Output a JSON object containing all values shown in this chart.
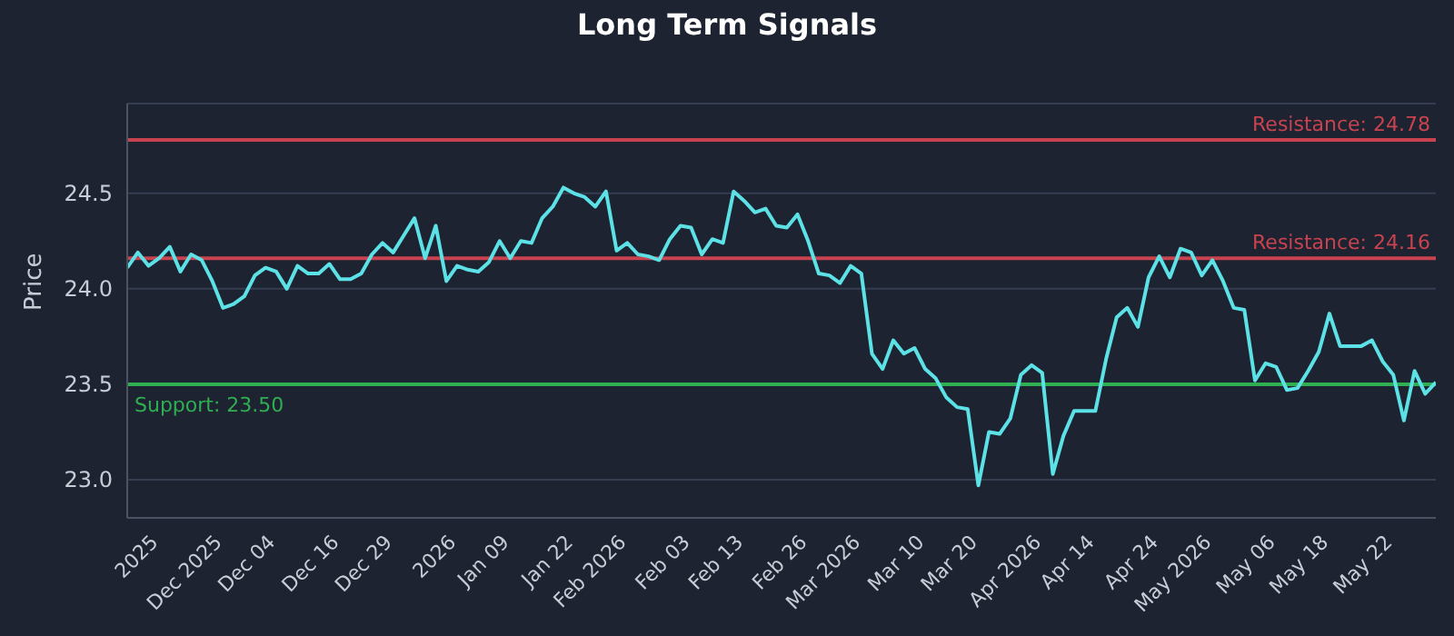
{
  "chart_data": {
    "type": "line",
    "title": "Long Term Signals",
    "ylabel": "Price",
    "categories": [
      null,
      null,
      null,
      "2025",
      null,
      null,
      null,
      null,
      null,
      "Dec 2025",
      null,
      null,
      null,
      null,
      "Dec 04",
      null,
      null,
      null,
      null,
      null,
      "Dec 16",
      null,
      null,
      null,
      null,
      "Dec 29",
      null,
      null,
      null,
      null,
      null,
      "2026",
      null,
      null,
      null,
      null,
      "Jan 09",
      null,
      null,
      null,
      null,
      null,
      "Jan 22",
      null,
      null,
      null,
      null,
      "Feb 2026",
      null,
      null,
      null,
      null,
      null,
      "Feb 03",
      null,
      null,
      null,
      null,
      "Feb 13",
      null,
      null,
      null,
      null,
      null,
      "Feb 26",
      null,
      null,
      null,
      null,
      "Mar 2026",
      null,
      null,
      null,
      null,
      null,
      "Mar 10",
      null,
      null,
      null,
      null,
      "Mar 20",
      null,
      null,
      null,
      null,
      null,
      "Apr 2026",
      null,
      null,
      null,
      null,
      "Apr 14",
      null,
      null,
      null,
      null,
      null,
      "Apr 24",
      null,
      null,
      null,
      null,
      "May 2026",
      null,
      null,
      null,
      null,
      null,
      "May 06",
      null,
      null,
      null,
      null,
      "May 18",
      null,
      null,
      null,
      null,
      null,
      "May 22",
      null,
      null,
      null,
      null
    ],
    "series": [
      {
        "color": "#5ce1e6",
        "values": [
          24.11,
          24.19,
          24.12,
          24.16,
          24.22,
          24.09,
          24.18,
          24.15,
          24.04,
          23.9,
          23.92,
          23.96,
          24.07,
          24.11,
          24.09,
          24.0,
          24.12,
          24.08,
          24.08,
          24.13,
          24.05,
          24.05,
          24.08,
          24.18,
          24.24,
          24.19,
          24.28,
          24.37,
          24.16,
          24.33,
          24.04,
          24.12,
          24.1,
          24.09,
          24.14,
          24.25,
          24.16,
          24.25,
          24.24,
          24.37,
          24.43,
          24.53,
          24.5,
          24.48,
          24.43,
          24.51,
          24.2,
          24.24,
          24.18,
          24.17,
          24.15,
          24.26,
          24.33,
          24.32,
          24.18,
          24.26,
          24.24,
          24.51,
          24.46,
          24.4,
          24.42,
          24.33,
          24.32,
          24.39,
          24.25,
          24.08,
          24.07,
          24.03,
          24.12,
          24.08,
          23.66,
          23.58,
          23.73,
          23.66,
          23.69,
          23.58,
          23.53,
          23.43,
          23.38,
          23.37,
          22.97,
          23.25,
          23.24,
          23.32,
          23.55,
          23.6,
          23.56,
          23.03,
          23.23,
          23.36,
          23.36,
          23.36,
          23.63,
          23.85,
          23.9,
          23.8,
          24.06,
          24.17,
          24.06,
          24.21,
          24.19,
          24.07,
          24.15,
          24.04,
          23.9,
          23.89,
          23.52,
          23.61,
          23.59,
          23.47,
          23.48,
          23.57,
          23.67,
          23.87,
          23.7,
          23.7,
          23.7,
          23.73,
          23.62,
          23.55,
          23.31,
          23.57,
          23.45,
          23.51
        ]
      }
    ],
    "ylim": [
      22.8,
      24.97
    ],
    "yticks": [
      {
        "value": 23,
        "label": "23.0"
      },
      {
        "value": 23.5,
        "label": "23.5"
      },
      {
        "value": 24,
        "label": "24.0"
      },
      {
        "value": 24.5,
        "label": "24.5"
      }
    ],
    "ref_lines": [
      {
        "axis": "y",
        "value": 24.78,
        "label": "Resistance: 24.78",
        "color": "#c8434f"
      },
      {
        "axis": "y",
        "value": 24.16,
        "label": "Resistance: 24.16",
        "color": "#c8434f"
      },
      {
        "axis": "y",
        "value": 23.5,
        "label": "Support: 23.50",
        "color": "#2fae52"
      }
    ],
    "grid": "y",
    "marker": "none",
    "line_style": "solid"
  }
}
